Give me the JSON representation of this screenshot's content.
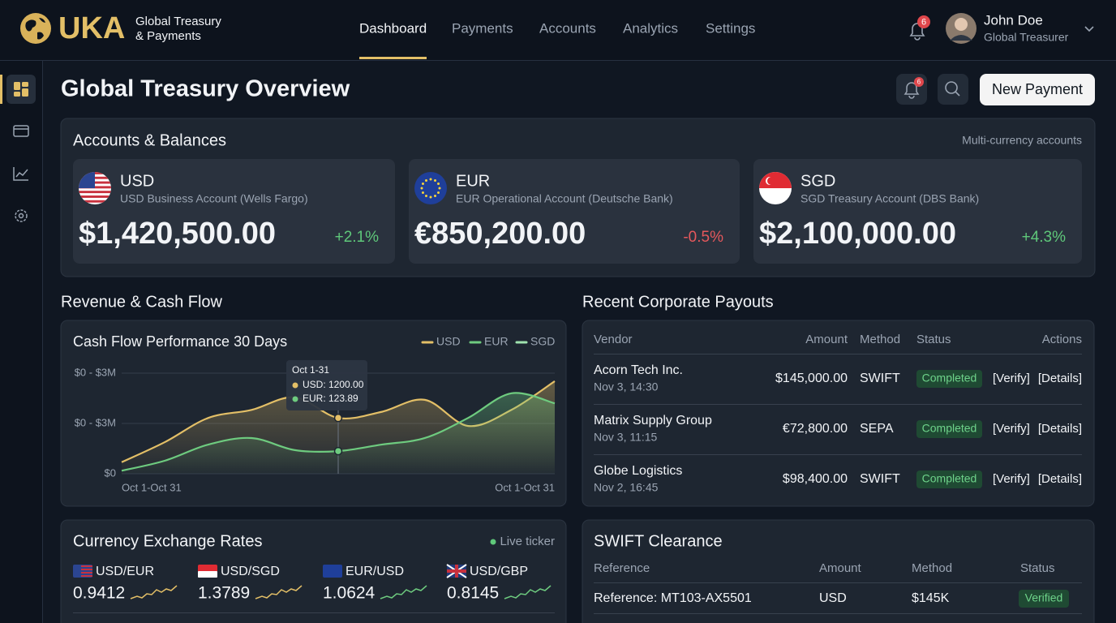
{
  "header": {
    "brand": "UKA",
    "tagline": [
      "Global Treasury",
      "& Payments"
    ],
    "nav": [
      "Dashboard",
      "Payments",
      "Accounts",
      "Analytics",
      "Settings"
    ],
    "notifications": "6",
    "user": {
      "name": "John Doe",
      "role": "Global Treasurer"
    }
  },
  "page": {
    "title": "Global Treasury Overview",
    "alerts": "6",
    "new_payment": "New Payment"
  },
  "accounts": {
    "title": "Accounts & Balances",
    "subtitle": "Multi-currency accounts",
    "cards": [
      {
        "code": "USD",
        "account": "USD Business Account (Wells Fargo)",
        "balance": "$1,420,500.00",
        "change": "+2.1%",
        "change_color": "#5fc87a"
      },
      {
        "code": "EUR",
        "account": "EUR Operational Account (Deutsche Bank)",
        "balance": "€850,200.00",
        "change": "-0.5%",
        "change_color": "#e5585c"
      },
      {
        "code": "SGD",
        "account": "SGD Treasury Account (DBS Bank)",
        "balance": "$2,100,000.00",
        "change": "+4.3%",
        "change_color": "#5fc87a"
      }
    ]
  },
  "cash_flow": {
    "section_title": "Revenue & Cash Flow",
    "chart": {
      "type": "line",
      "title": "Cash Flow Performance 30 Days",
      "categories": [
        "Oct 1-Oct 31",
        null,
        null,
        null,
        null,
        null,
        null,
        null,
        null,
        null,
        "Oct 1-Oct 31"
      ],
      "series": [
        {
          "name": "USD",
          "color": "#e3bf67",
          "values": [
            0.23,
            0.63,
            1.11,
            1.27,
            1.52,
            1.11,
            1.23,
            1.47,
            0.95,
            1.27,
            1.84
          ]
        },
        {
          "name": "EUR",
          "color": "#6ecb7f",
          "values": [
            0.06,
            0.26,
            0.58,
            0.71,
            0.47,
            0.45,
            0.58,
            0.71,
            1.11,
            1.6,
            1.4
          ]
        },
        {
          "name": "SGD",
          "color": "#9fe3ae",
          "values": [
            null,
            null,
            null,
            null,
            null,
            null,
            null,
            null,
            null,
            null,
            null
          ]
        }
      ],
      "ylim": [
        0,
        2.2
      ],
      "yticks": [
        {
          "value": 0,
          "label": "$0"
        },
        {
          "value": 1,
          "label": "$0 - $3M"
        },
        {
          "value": 2,
          "label": "$0 - $3M"
        }
      ],
      "grid": true,
      "tooltip": {
        "title": "Oct 1-31",
        "lines": [
          "USD: 1200.00",
          "EUR: 123.89"
        ]
      }
    }
  },
  "payouts": {
    "title": "Recent Corporate Payouts",
    "columns": [
      "Vendor",
      "Amount",
      "Method",
      "Status",
      "Actions"
    ],
    "rows": [
      {
        "vendor": "Acorn Tech Inc.",
        "time": "Nov 3, 14:30",
        "amount": "$145,000.00",
        "method": "SWIFT",
        "status": "Completed",
        "actions": [
          "[Verify]",
          "[Details]"
        ]
      },
      {
        "vendor": "Matrix Supply Group",
        "time": "Nov 3, 11:15",
        "amount": "€72,800.00",
        "method": "SEPA",
        "status": "Completed",
        "actions": [
          "[Verify]",
          "[Details]"
        ]
      },
      {
        "vendor": "Globe Logistics",
        "time": "Nov 2, 16:45",
        "amount": "$98,400.00",
        "method": "SWIFT",
        "status": "Completed",
        "actions": [
          "[Verify]",
          "[Details]"
        ]
      }
    ]
  },
  "exchange": {
    "title": "Currency Exchange Rates",
    "live": "Live ticker",
    "rates": [
      {
        "pair": "USD/EUR",
        "rate": "0.9412"
      },
      {
        "pair": "USD/SGD",
        "rate": "1.3789"
      },
      {
        "pair": "EUR/USD",
        "rate": "1.0624"
      },
      {
        "pair": "USD/GBP",
        "rate": "0.8145"
      }
    ]
  },
  "swift": {
    "title": "SWIFT Clearance",
    "columns": [
      "Reference",
      "Amount",
      "Method",
      "Status"
    ],
    "rows": [
      {
        "reference": "Reference: MT103-AX5501",
        "amount": "USD",
        "method": "$145K",
        "status": "Verified"
      }
    ]
  }
}
